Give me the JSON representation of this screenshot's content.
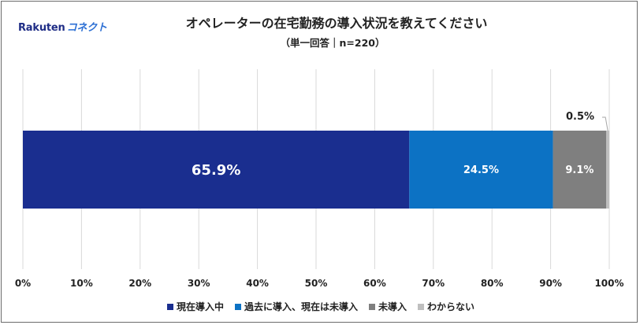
{
  "logo": {
    "brand": "Rakuten",
    "sub": "コネクト"
  },
  "chart_data": {
    "type": "bar",
    "orientation": "horizontal-stacked-100",
    "title": "オペレーターの在宅勤務の導入状況を教えてください",
    "subtitle": "（単一回答｜n=220）",
    "xlim": [
      0,
      100
    ],
    "x_ticks": [
      "0%",
      "10%",
      "20%",
      "30%",
      "40%",
      "50%",
      "60%",
      "70%",
      "80%",
      "90%",
      "100%"
    ],
    "grid": true,
    "legend_position": "bottom",
    "series": [
      {
        "name": "現在導入中",
        "value": 65.9,
        "label": "65.9%",
        "color": "#1a2e8f"
      },
      {
        "name": "過去に導入、現在は未導入",
        "value": 24.5,
        "label": "24.5%",
        "color": "#0c72c4"
      },
      {
        "name": "未導入",
        "value": 9.1,
        "label": "9.1%",
        "color": "#7f7f7f"
      },
      {
        "name": "わからない",
        "value": 0.5,
        "label": "0.5%",
        "color": "#bfbfbf"
      }
    ]
  }
}
